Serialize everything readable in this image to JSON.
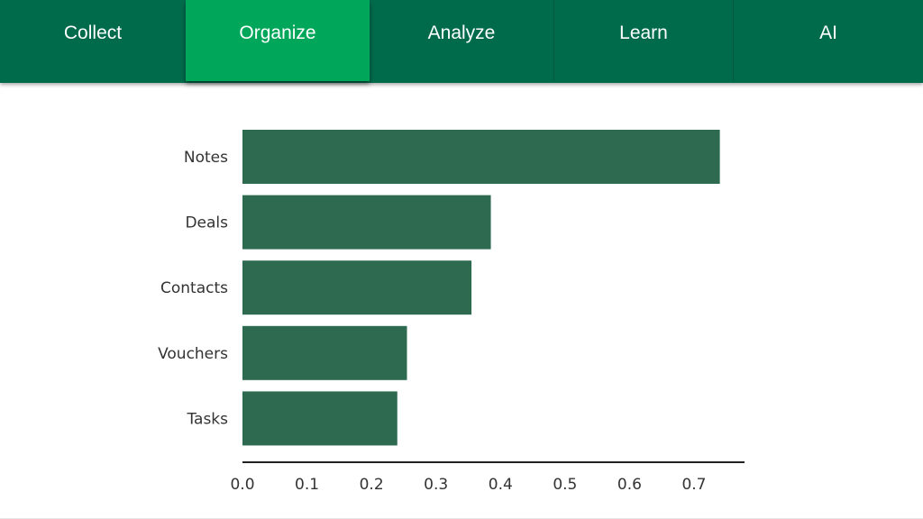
{
  "nav": {
    "tabs": [
      {
        "label": "Collect",
        "active": false
      },
      {
        "label": "Organize",
        "active": true
      },
      {
        "label": "Analyze",
        "active": false
      },
      {
        "label": "Learn",
        "active": false
      },
      {
        "label": "AI",
        "active": false
      }
    ]
  },
  "colors": {
    "nav_bg": "#006b4b",
    "nav_active": "#00a65a",
    "bar": "#2d6a4f",
    "axis": "#222222"
  },
  "chart_data": {
    "type": "bar",
    "orientation": "horizontal",
    "categories": [
      "Notes",
      "Deals",
      "Contacts",
      "Vouchers",
      "Tasks"
    ],
    "values": [
      0.74,
      0.385,
      0.355,
      0.255,
      0.24
    ],
    "title": "",
    "xlabel": "",
    "ylabel": "",
    "xlim": [
      0,
      0.78
    ],
    "xticks": [
      "0.0",
      "0.1",
      "0.2",
      "0.3",
      "0.4",
      "0.5",
      "0.6",
      "0.7"
    ],
    "grid": false,
    "legend": "none"
  }
}
